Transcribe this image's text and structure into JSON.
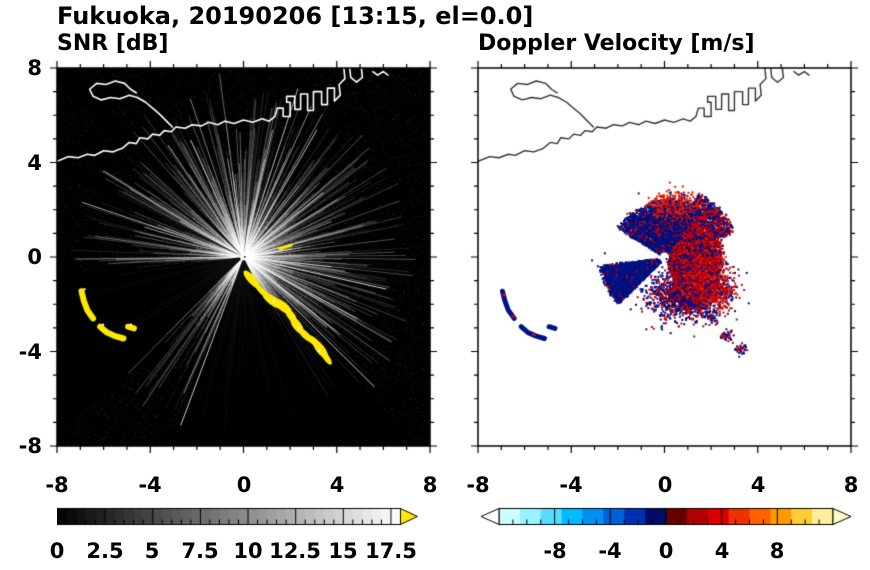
{
  "title": "Fukuoka, 20190206 [13:15, el=0.0]",
  "panels": [
    {
      "id": "snr",
      "title": "SNR [dB]"
    },
    {
      "id": "velocity",
      "title": "Doppler Velocity [m/s]"
    }
  ],
  "axes": {
    "range": [
      -8,
      8
    ],
    "major_step": 4,
    "minor_step": 1,
    "x_labels": [
      "-8",
      "-4",
      "0",
      "4",
      "8"
    ],
    "y_labels": [
      "8",
      "4",
      "0",
      "-4",
      "-8"
    ]
  },
  "colorbars": {
    "snr": {
      "min": 0,
      "max": 18,
      "tick_values": [
        0,
        2.5,
        5,
        7.5,
        10,
        12.5,
        15,
        17.5
      ],
      "tick_labels": [
        "0",
        "2.5",
        "5",
        "7.5",
        "10",
        "12.5",
        "15",
        "17.5"
      ],
      "style": "grayscale",
      "start_color": "#000000",
      "end_color": "#ffffff",
      "overflow_color": "#ffe800",
      "minor_tick_step": 0.5,
      "major_tick_step": 2.5
    },
    "vel": {
      "min": -12,
      "max": 12,
      "tick_values": [
        -8,
        -4,
        0,
        4,
        8
      ],
      "tick_labels": [
        "-8",
        "-4",
        "0",
        "4",
        "8"
      ],
      "segments": [
        "#ccffff",
        "#99f2ff",
        "#55ddff",
        "#00bbff",
        "#0090f0",
        "#0060d8",
        "#0030b0",
        "#000d66",
        "#660000",
        "#b00000",
        "#d80000",
        "#f03000",
        "#ff6000",
        "#ff9900",
        "#ffcc33",
        "#ffee99"
      ],
      "underflow_color": "#ffffff",
      "overflow_color": "#ffffcc",
      "minor_tick_step": 1,
      "major_tick_step": 4
    }
  },
  "chart_data": {
    "type": "radar_ppi",
    "site": "Fukuoka",
    "date": "20190206",
    "time": "13:15",
    "elevation_deg": 0.0,
    "axis_range_km": [
      -8,
      8
    ],
    "variables": [
      {
        "name": "SNR",
        "unit": "dB",
        "scale": [
          0,
          18
        ]
      },
      {
        "name": "Doppler Velocity",
        "unit": "m/s",
        "scale": [
          -12,
          12
        ]
      }
    ],
    "coastline_paths": [
      [
        [
          -8,
          4.05
        ],
        [
          -7.5,
          4.25
        ],
        [
          -7.1,
          4.2
        ],
        [
          -6.7,
          4.35
        ],
        [
          -6.4,
          4.3
        ],
        [
          -6.0,
          4.5
        ],
        [
          -5.6,
          4.45
        ],
        [
          -5.2,
          4.6
        ],
        [
          -4.9,
          4.85
        ],
        [
          -4.6,
          4.8
        ],
        [
          -4.45,
          5.05
        ],
        [
          -4.1,
          5.0
        ],
        [
          -3.9,
          5.2
        ],
        [
          -3.6,
          5.15
        ],
        [
          -3.4,
          5.35
        ],
        [
          -3.1,
          5.3
        ],
        [
          -2.9,
          5.5
        ],
        [
          -2.5,
          5.45
        ],
        [
          -2.2,
          5.6
        ],
        [
          -1.8,
          5.55
        ],
        [
          -1.5,
          5.7
        ],
        [
          -1.1,
          5.6
        ],
        [
          -0.8,
          5.75
        ],
        [
          -0.4,
          5.65
        ],
        [
          0,
          5.8
        ],
        [
          0.4,
          5.7
        ],
        [
          0.8,
          5.85
        ],
        [
          1.1,
          5.75
        ],
        [
          1.35,
          5.95
        ],
        [
          1.45,
          6.3
        ],
        [
          1.7,
          6.3
        ],
        [
          1.7,
          5.95
        ],
        [
          2.0,
          5.95
        ],
        [
          2.0,
          6.55
        ],
        [
          1.85,
          6.55
        ],
        [
          1.85,
          6.8
        ],
        [
          2.2,
          6.8
        ],
        [
          2.2,
          6.25
        ],
        [
          2.45,
          6.25
        ],
        [
          2.45,
          6.9
        ],
        [
          2.75,
          6.9
        ],
        [
          2.75,
          6.2
        ],
        [
          3.0,
          6.2
        ],
        [
          3.0,
          7.0
        ],
        [
          3.35,
          7.0
        ],
        [
          3.35,
          6.45
        ],
        [
          3.6,
          6.45
        ],
        [
          3.6,
          7.15
        ],
        [
          3.9,
          7.15
        ],
        [
          3.9,
          6.6
        ],
        [
          4.15,
          6.85
        ],
        [
          4.1,
          7.3
        ],
        [
          4.35,
          7.55
        ],
        [
          4.3,
          8.05
        ]
      ],
      [
        [
          -3.05,
          5.5
        ],
        [
          -3.3,
          5.75
        ],
        [
          -3.6,
          6.05
        ],
        [
          -3.9,
          6.3
        ],
        [
          -4.2,
          6.55
        ],
        [
          -4.55,
          6.75
        ],
        [
          -4.9,
          6.85
        ],
        [
          -5.3,
          6.7
        ],
        [
          -5.7,
          6.75
        ],
        [
          -6.1,
          6.65
        ],
        [
          -6.45,
          6.8
        ],
        [
          -6.6,
          7.1
        ],
        [
          -6.3,
          7.35
        ],
        [
          -5.9,
          7.3
        ],
        [
          -5.5,
          7.45
        ],
        [
          -5.1,
          7.35
        ],
        [
          -4.85,
          7.1
        ],
        [
          -4.6,
          6.95
        ]
      ],
      [
        [
          4.55,
          8.05
        ],
        [
          4.6,
          7.6
        ],
        [
          4.85,
          7.4
        ],
        [
          5.1,
          7.6
        ],
        [
          5.05,
          8.05
        ]
      ],
      [
        [
          5.55,
          7.85
        ],
        [
          5.75,
          7.7
        ],
        [
          6.0,
          7.85
        ],
        [
          6.2,
          7.7
        ]
      ]
    ],
    "snr_field": {
      "seed": 11,
      "noise_points": 14000,
      "glow_points": 9500,
      "glow_radius_px": 118,
      "rays": {
        "count": 1000,
        "bright_count": 60
      },
      "shadow_wedges": [
        [
          186,
          224,
          0.94
        ],
        [
          250,
          296,
          0.94
        ],
        [
          133,
          137,
          0.85
        ],
        [
          152,
          156,
          0.8
        ],
        [
          82,
          84.5,
          0.75
        ]
      ],
      "clutter_color": "#ffe800",
      "chain_blobs": [
        [
          0.35,
          -0.95
        ],
        [
          0.8,
          -1.45
        ],
        [
          1.25,
          -1.85
        ],
        [
          1.7,
          -2.1
        ],
        [
          2.05,
          -2.5
        ],
        [
          2.3,
          -2.9
        ],
        [
          2.65,
          -3.3
        ],
        [
          3.05,
          -3.6
        ],
        [
          3.3,
          -3.9
        ],
        [
          3.55,
          -4.25
        ]
      ],
      "streak": [
        [
          1.55,
          0.35
        ],
        [
          2.05,
          0.5
        ]
      ],
      "arc_paths": [
        [
          [
            -6.95,
            -1.45
          ],
          [
            -6.85,
            -1.85
          ],
          [
            -6.7,
            -2.25
          ],
          [
            -6.45,
            -2.6
          ]
        ],
        [
          [
            -6.15,
            -2.95
          ],
          [
            -5.85,
            -3.2
          ],
          [
            -5.5,
            -3.35
          ],
          [
            -5.15,
            -3.45
          ]
        ],
        [
          [
            -4.95,
            -2.95
          ],
          [
            -4.7,
            -3.02
          ]
        ]
      ]
    },
    "velocity_field": {
      "seed": 29,
      "clusters": [
        {
          "type": "fan",
          "cx": 0,
          "cy": 0,
          "a0": -70,
          "a1": 55,
          "r0": 0.25,
          "r1": 2.35,
          "n": 5200,
          "jr": 0.45,
          "colors": [
            [
              "#c80000",
              0.5
            ],
            [
              "#e81800",
              0.14
            ],
            [
              "#001289",
              0.24
            ],
            [
              "#000d66",
              0.12
            ]
          ]
        },
        {
          "type": "fan",
          "cx": 0,
          "cy": 0,
          "a0": 20,
          "a1": 62,
          "r0": 2.2,
          "r1": 3.05,
          "n": 700,
          "jr": 0.3,
          "colors": [
            [
              "#c80000",
              0.45
            ],
            [
              "#001289",
              0.55
            ]
          ]
        },
        {
          "type": "fan",
          "cx": 0,
          "cy": 0,
          "a0": 55,
          "a1": 148,
          "r0": 0.3,
          "r1": 2.3,
          "n": 3600,
          "jr": 0.4,
          "colors": [
            [
              "#001289",
              0.62
            ],
            [
              "#000d66",
              0.2
            ],
            [
              "#c80000",
              0.18
            ]
          ]
        },
        {
          "type": "gauss",
          "cx": 0.45,
          "cy": 2.25,
          "sx": 0.5,
          "sy": 0.28,
          "n": 380,
          "colors": [
            [
              "#e81800",
              0.7
            ],
            [
              "#001289",
              0.3
            ]
          ]
        },
        {
          "type": "fan",
          "cx": 0,
          "cy": 0,
          "a0": 187,
          "a1": 224,
          "r0": 0.35,
          "r1": 2.75,
          "n": 2800,
          "jr": 0.25,
          "colors": [
            [
              "#001289",
              0.8
            ],
            [
              "#000d66",
              0.14
            ],
            [
              "#c80000",
              0.06
            ]
          ]
        },
        {
          "type": "gauss",
          "cx": 0.75,
          "cy": -1.55,
          "sx": 0.75,
          "sy": 0.5,
          "n": 1300,
          "colors": [
            [
              "#001289",
              0.5
            ],
            [
              "#000d66",
              0.12
            ],
            [
              "#c80000",
              0.38
            ]
          ]
        },
        {
          "type": "gauss",
          "cx": 1.9,
          "cy": -1.25,
          "sx": 0.55,
          "sy": 0.5,
          "n": 900,
          "colors": [
            [
              "#d80000",
              0.6
            ],
            [
              "#e83000",
              0.15
            ],
            [
              "#001289",
              0.25
            ]
          ]
        }
      ],
      "chain_specks": {
        "points": [
          [
            1.3,
            -1.9
          ],
          [
            2.0,
            -2.5
          ],
          [
            2.65,
            -3.3
          ],
          [
            3.2,
            -3.85
          ]
        ],
        "n": 40,
        "s": 0.13,
        "colors": [
          [
            "#001289",
            0.6
          ],
          [
            "#c80000",
            0.4
          ]
        ]
      },
      "extra_specks": [
        [
          -2.9,
          -0.35
        ],
        [
          -3.15,
          -0.1
        ],
        [
          -2.6,
          0.2
        ]
      ],
      "arc_color": "#001289",
      "arc_paths": [
        [
          [
            -6.95,
            -1.45
          ],
          [
            -6.85,
            -1.85
          ],
          [
            -6.7,
            -2.25
          ],
          [
            -6.45,
            -2.6
          ]
        ],
        [
          [
            -6.15,
            -2.95
          ],
          [
            -5.85,
            -3.2
          ],
          [
            -5.5,
            -3.35
          ],
          [
            -5.15,
            -3.45
          ]
        ],
        [
          [
            -4.95,
            -2.95
          ],
          [
            -4.7,
            -3.02
          ]
        ]
      ],
      "arc_red_specks": [
        [
          -6.88,
          -1.6
        ],
        [
          -6.5,
          -2.52
        ],
        [
          -5.6,
          -3.28
        ]
      ]
    }
  }
}
